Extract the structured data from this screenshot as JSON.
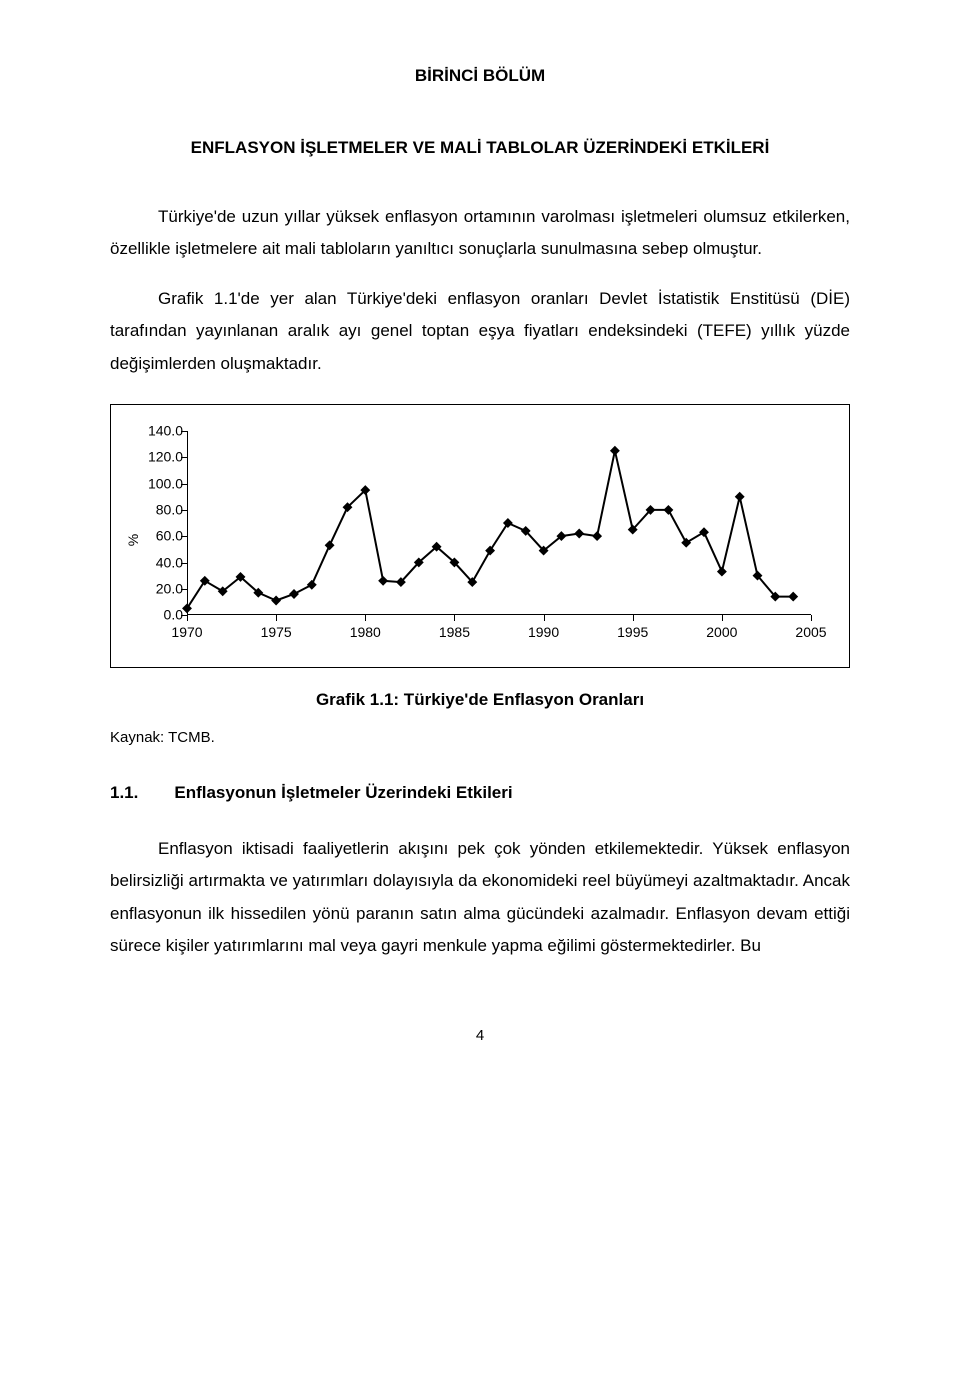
{
  "header": {
    "chapter": "BİRİNCİ BÖLÜM",
    "title": "ENFLASYON İŞLETMELER VE MALİ TABLOLAR ÜZERİNDEKİ ETKİLERİ"
  },
  "paragraphs": {
    "p1": "Türkiye'de uzun yıllar yüksek enflasyon ortamının varolması işletmeleri olumsuz etkilerken, özellikle işletmelere ait mali tabloların yanıltıcı sonuçlarla sunulmasına sebep olmuştur.",
    "p2": "Grafik 1.1'de yer alan Türkiye'deki enflasyon oranları Devlet İstatistik Enstitüsü (DİE) tarafından yayınlanan aralık ayı genel toptan eşya fiyatları endeksindeki (TEFE) yıllık yüzde değişimlerden oluşmaktadır.",
    "p3": "Enflasyon iktisadi faaliyetlerin akışını pek çok yönden etkilemektedir. Yüksek enflasyon belirsizliği artırmakta ve yatırımları dolayısıyla da ekonomideki reel büyümeyi azaltmaktadır. Ancak enflasyonun ilk hissedilen yönü paranın satın alma gücündeki azalmadır. Enflasyon devam ettiği sürece kişiler yatırımlarını mal veya gayri menkule yapma eğilimi göstermektedirler. Bu"
  },
  "chart": {
    "type": "line",
    "y_label": "%",
    "xlim": [
      1970,
      2005
    ],
    "ylim": [
      0,
      140
    ],
    "y_ticks": [
      0.0,
      20.0,
      40.0,
      60.0,
      80.0,
      100.0,
      120.0,
      140.0
    ],
    "y_tick_labels": [
      "0.0",
      "20.0",
      "40.0",
      "60.0",
      "80.0",
      "100.0",
      "120.0",
      "140.0"
    ],
    "x_ticks": [
      1970,
      1975,
      1980,
      1985,
      1990,
      1995,
      2000,
      2005
    ],
    "x_tick_labels": [
      "1970",
      "1975",
      "1980",
      "1985",
      "1990",
      "1995",
      "2000",
      "2005"
    ],
    "series_years": [
      1970,
      1971,
      1972,
      1973,
      1974,
      1975,
      1976,
      1977,
      1978,
      1979,
      1980,
      1981,
      1982,
      1983,
      1984,
      1985,
      1986,
      1987,
      1988,
      1989,
      1990,
      1991,
      1992,
      1993,
      1994,
      1995,
      1996,
      1997,
      1998,
      1999,
      2000,
      2001,
      2002,
      2003,
      2004
    ],
    "series_values": [
      5,
      26,
      18,
      29,
      17,
      11,
      16,
      23,
      53,
      82,
      95,
      26,
      25,
      40,
      52,
      40,
      25,
      49,
      70,
      64,
      49,
      60,
      62,
      60,
      125,
      65,
      80,
      80,
      55,
      63,
      33,
      90,
      30,
      14,
      14
    ],
    "line_color": "#000000",
    "marker_fill": "#000000",
    "marker_radius": 3.5,
    "line_width": 2,
    "background_color": "#ffffff",
    "tick_fontsize": 14,
    "frame_border_color": "#000000",
    "frame_border_width": 1
  },
  "chart_caption": "Grafik 1.1: Türkiye'de Enflasyon Oranları",
  "chart_source": "Kaynak: TCMB.",
  "section": {
    "number": "1.1.",
    "title": "Enflasyonun İşletmeler Üzerindeki Etkileri"
  },
  "page_number": "4"
}
